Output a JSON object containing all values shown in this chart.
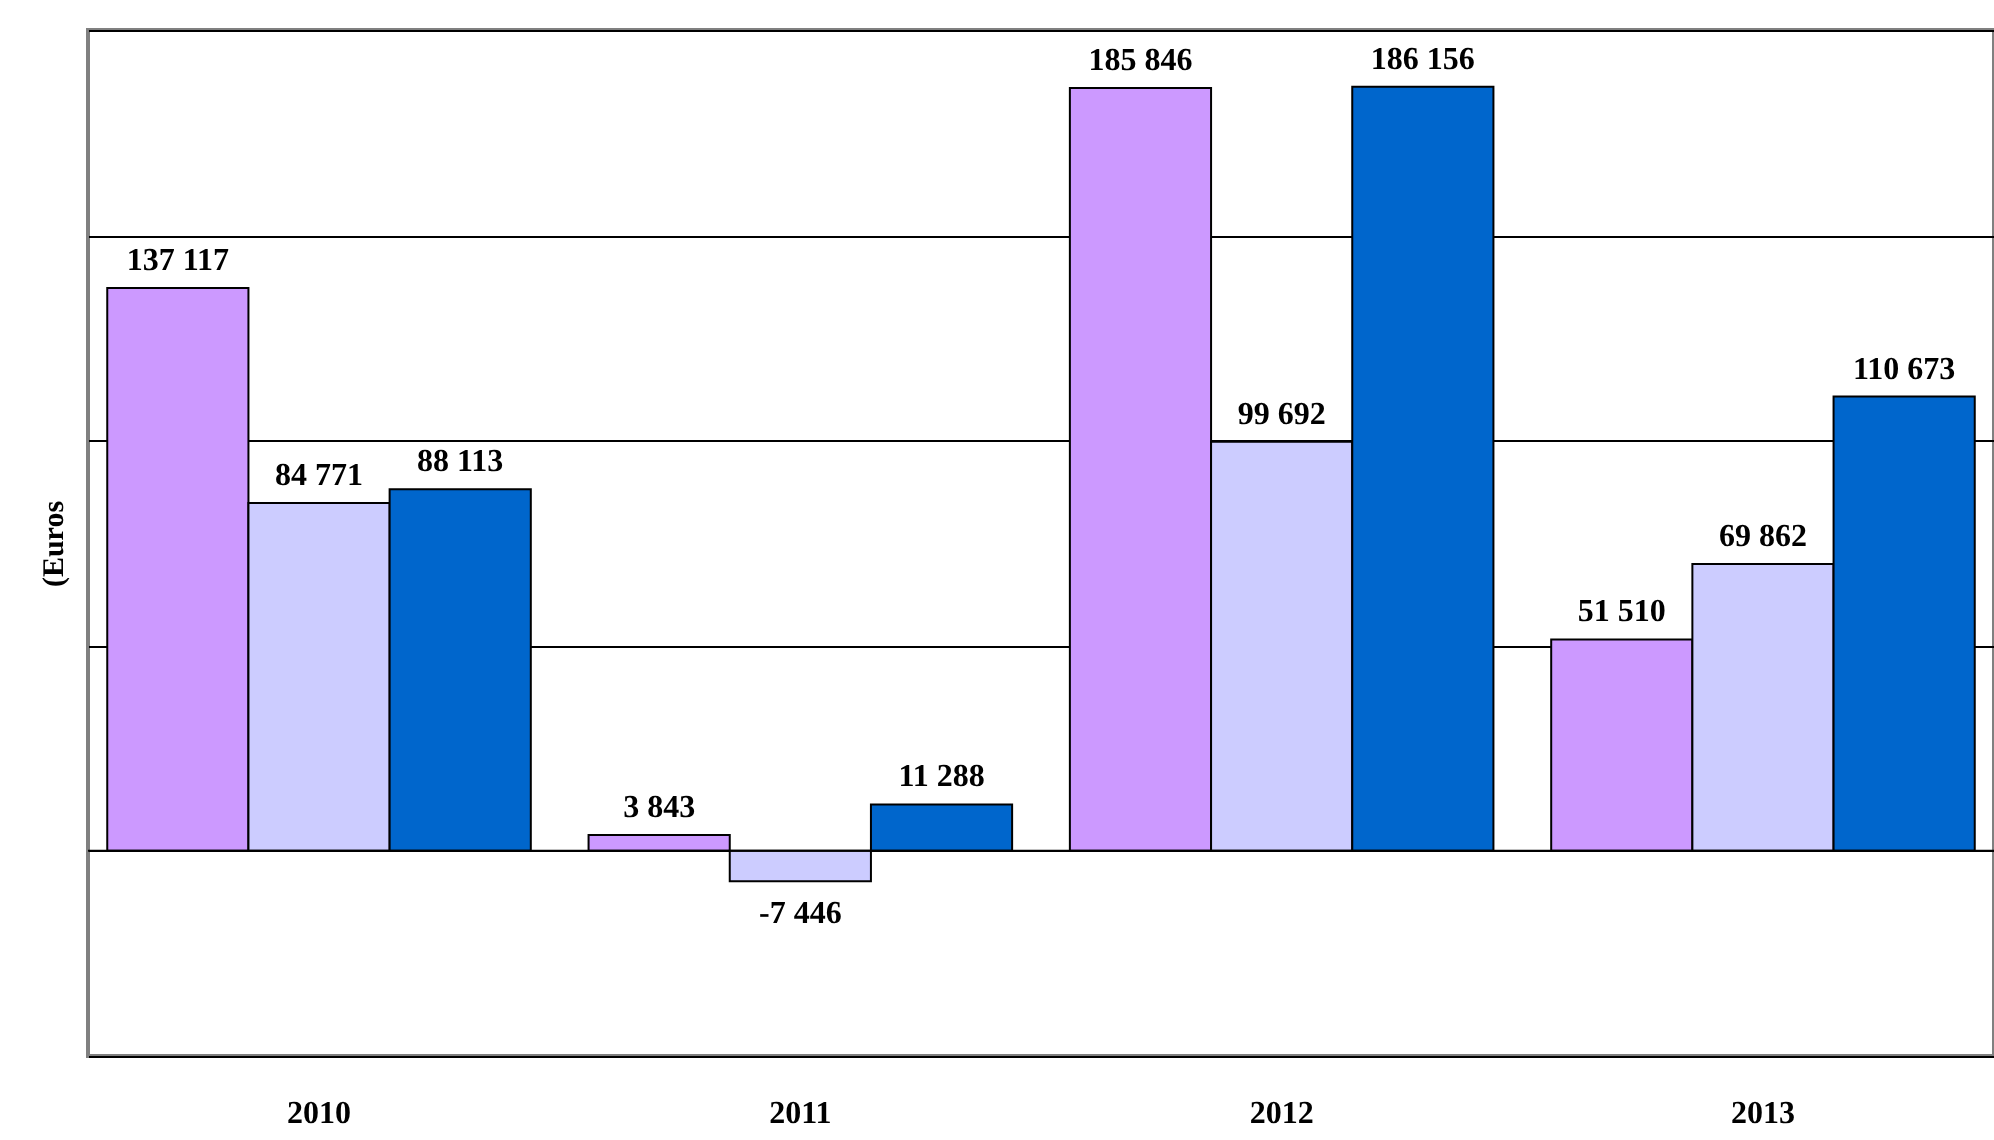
{
  "chart_data": {
    "type": "bar",
    "ylabel": "(Euros",
    "categories": [
      "2010",
      "2011",
      "2012",
      "2013"
    ],
    "series": [
      {
        "color": "#cc99ff",
        "values": [
          137117,
          3843,
          185846,
          51510
        ],
        "value_labels": [
          "137 117",
          "3 843",
          "185 846",
          "51 510"
        ]
      },
      {
        "color": "#ccccff",
        "values": [
          84771,
          -7446,
          99692,
          69862
        ],
        "value_labels": [
          "84 771",
          "-7 446",
          "99 692",
          "69 862"
        ]
      },
      {
        "color": "#0066cc",
        "values": [
          88113,
          11288,
          186156,
          110673
        ],
        "value_labels": [
          "88 113",
          "11 288",
          "186 156",
          "110 673"
        ]
      }
    ],
    "ylim": [
      -50000,
      200000
    ],
    "yticks": [
      {
        "value": -50000,
        "label": null
      },
      {
        "value": 0,
        "label": null
      },
      {
        "value": 50000,
        "label": null
      },
      {
        "value": 100000,
        "label": null
      },
      {
        "value": 150000,
        "label": null
      },
      {
        "value": 200000,
        "label": null
      }
    ],
    "grid": "y",
    "tick_labels": "x"
  }
}
